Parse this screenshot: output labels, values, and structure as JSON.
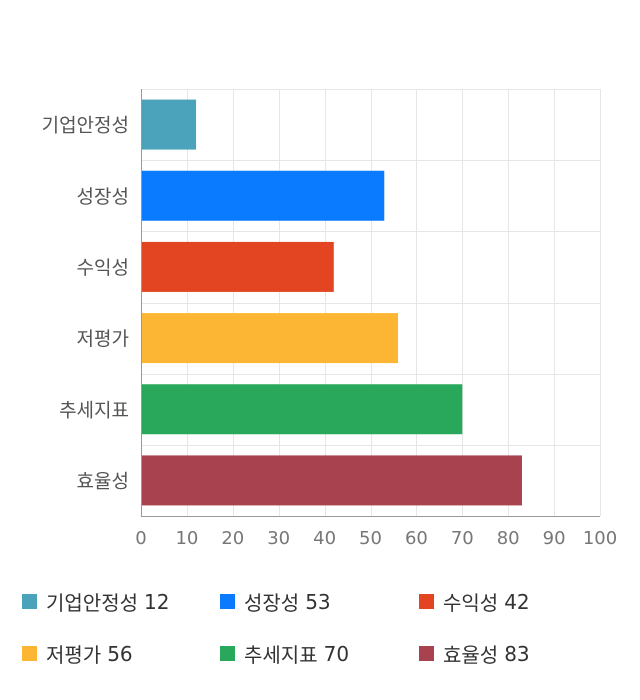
{
  "chart_data": {
    "type": "bar",
    "orientation": "horizontal",
    "categories": [
      "기업안정성",
      "성장성",
      "수익성",
      "저평가",
      "추세지표",
      "효율성"
    ],
    "values": [
      12,
      53,
      42,
      56,
      70,
      83
    ],
    "colors": [
      "#4aa3ba",
      "#0a7bff",
      "#e34523",
      "#fdb634",
      "#29a75a",
      "#a8424f"
    ],
    "xlim": [
      0,
      100
    ],
    "xticks": [
      "0",
      "10",
      "20",
      "30",
      "40",
      "50",
      "60",
      "70",
      "80",
      "90",
      "100"
    ],
    "grid": true,
    "legend_position": "bottom"
  }
}
